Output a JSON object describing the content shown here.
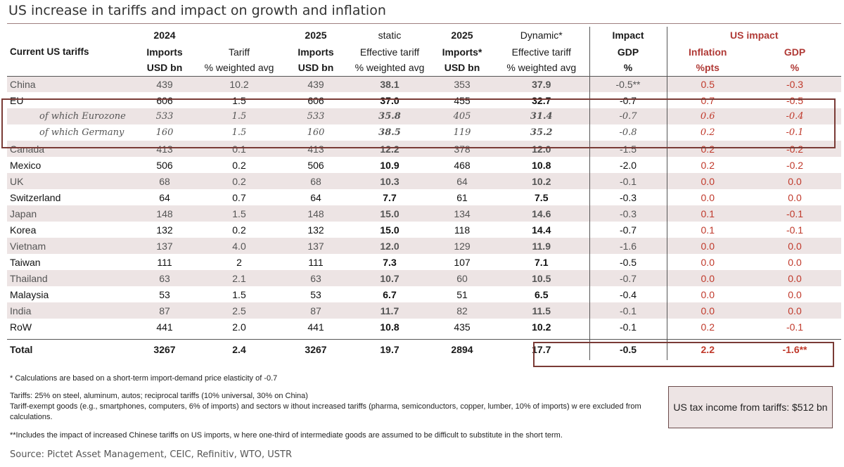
{
  "title": "US increase in tariffs and impact on growth and inflation",
  "header": {
    "col0": [
      "",
      "Current US tariffs",
      ""
    ],
    "col1": [
      "2024",
      "Imports",
      "USD bn"
    ],
    "col2": [
      "",
      "Tariff",
      "% weighted avg"
    ],
    "col3": [
      "2025",
      "Imports",
      "USD bn"
    ],
    "col4": [
      "static",
      "Effective tariff",
      "% weighted avg"
    ],
    "col5": [
      "2025",
      "Imports*",
      "USD bn"
    ],
    "col6": [
      "Dynamic*",
      "Effective tariff",
      "% weighted avg"
    ],
    "col7": [
      "Impact",
      "GDP",
      "%"
    ],
    "us_impact": "US impact",
    "col8": [
      "Inflation",
      "%pts"
    ],
    "col9": [
      "GDP",
      "%"
    ]
  },
  "rows": [
    {
      "country": "China",
      "imp24": "439",
      "tariff": "10.2",
      "imp25": "439",
      "static": "38.1",
      "imp25d": "353",
      "dynamic": "37.9",
      "gdp_impact": "-0.5**",
      "inflation": "0.5",
      "us_gdp": "-0.3"
    },
    {
      "country": "EU",
      "imp24": "606",
      "tariff": "1.5",
      "imp25": "606",
      "static": "37.0",
      "imp25d": "455",
      "dynamic": "32.7",
      "gdp_impact": "-0.7",
      "inflation": "0.7",
      "us_gdp": "-0.5"
    },
    {
      "country": "of which Eurozone",
      "imp24": "533",
      "tariff": "1.5",
      "imp25": "533",
      "static": "35.8",
      "imp25d": "405",
      "dynamic": "31.4",
      "gdp_impact": "-0.7",
      "inflation": "0.6",
      "us_gdp": "-0.4"
    },
    {
      "country": "of which Germany",
      "imp24": "160",
      "tariff": "1.5",
      "imp25": "160",
      "static": "38.5",
      "imp25d": "119",
      "dynamic": "35.2",
      "gdp_impact": "-0.8",
      "inflation": "0.2",
      "us_gdp": "-0.1"
    },
    {
      "country": "Canada",
      "imp24": "413",
      "tariff": "0.1",
      "imp25": "413",
      "static": "12.2",
      "imp25d": "378",
      "dynamic": "12.0",
      "gdp_impact": "-1.5",
      "inflation": "0.2",
      "us_gdp": "-0.2"
    },
    {
      "country": "Mexico",
      "imp24": "506",
      "tariff": "0.2",
      "imp25": "506",
      "static": "10.9",
      "imp25d": "468",
      "dynamic": "10.8",
      "gdp_impact": "-2.0",
      "inflation": "0.2",
      "us_gdp": "-0.2"
    },
    {
      "country": "UK",
      "imp24": "68",
      "tariff": "0.2",
      "imp25": "68",
      "static": "10.3",
      "imp25d": "64",
      "dynamic": "10.2",
      "gdp_impact": "-0.1",
      "inflation": "0.0",
      "us_gdp": "0.0"
    },
    {
      "country": "Switzerland",
      "imp24": "64",
      "tariff": "0.7",
      "imp25": "64",
      "static": "7.7",
      "imp25d": "61",
      "dynamic": "7.5",
      "gdp_impact": "-0.3",
      "inflation": "0.0",
      "us_gdp": "0.0"
    },
    {
      "country": "Japan",
      "imp24": "148",
      "tariff": "1.5",
      "imp25": "148",
      "static": "15.0",
      "imp25d": "134",
      "dynamic": "14.6",
      "gdp_impact": "-0.3",
      "inflation": "0.1",
      "us_gdp": "-0.1"
    },
    {
      "country": "Korea",
      "imp24": "132",
      "tariff": "0.2",
      "imp25": "132",
      "static": "15.0",
      "imp25d": "118",
      "dynamic": "14.4",
      "gdp_impact": "-0.7",
      "inflation": "0.1",
      "us_gdp": "-0.1"
    },
    {
      "country": "Vietnam",
      "imp24": "137",
      "tariff": "4.0",
      "imp25": "137",
      "static": "12.0",
      "imp25d": "129",
      "dynamic": "11.9",
      "gdp_impact": "-1.6",
      "inflation": "0.0",
      "us_gdp": "0.0"
    },
    {
      "country": "Taiwan",
      "imp24": "111",
      "tariff": "2",
      "imp25": "111",
      "static": "7.3",
      "imp25d": "107",
      "dynamic": "7.1",
      "gdp_impact": "-0.5",
      "inflation": "0.0",
      "us_gdp": "0.0"
    },
    {
      "country": "Thailand",
      "imp24": "63",
      "tariff": "2.1",
      "imp25": "63",
      "static": "10.7",
      "imp25d": "60",
      "dynamic": "10.5",
      "gdp_impact": "-0.7",
      "inflation": "0.0",
      "us_gdp": "0.0"
    },
    {
      "country": "Malaysia",
      "imp24": "53",
      "tariff": "1.5",
      "imp25": "53",
      "static": "6.7",
      "imp25d": "51",
      "dynamic": "6.5",
      "gdp_impact": "-0.4",
      "inflation": "0.0",
      "us_gdp": "0.0"
    },
    {
      "country": "India",
      "imp24": "87",
      "tariff": "2.5",
      "imp25": "87",
      "static": "11.7",
      "imp25d": "82",
      "dynamic": "11.5",
      "gdp_impact": "-0.1",
      "inflation": "0.0",
      "us_gdp": "0.0"
    },
    {
      "country": "RoW",
      "imp24": "441",
      "tariff": "2.0",
      "imp25": "441",
      "static": "10.8",
      "imp25d": "435",
      "dynamic": "10.2",
      "gdp_impact": "-0.1",
      "inflation": "0.2",
      "us_gdp": "-0.1"
    }
  ],
  "total": {
    "country": "Total",
    "imp24": "3267",
    "tariff": "2.4",
    "imp25": "3267",
    "static": "19.7",
    "imp25d": "2894",
    "dynamic": "17.7",
    "gdp_impact": "-0.5",
    "inflation": "2.2",
    "us_gdp": "-1.6**"
  },
  "notes": {
    "n1": "* Calculations are based on a short-term import-demand price elasticity of -0.7",
    "n2": "Tariffs: 25% on steel, aluminum, autos; reciprocal tariffs (10% universal, 30% on China)",
    "n3": "Tariff-exempt goods (e.g., smartphones, computers, 6% of imports)  and sectors w ithout increased tariffs (pharma, semiconductors, copper, lumber, 10% of imports) w ere excluded from calculations.",
    "n4": "**Includes the impact of increased Chinese tariffs on US imports, w here one-third of intermediate goods are assumed to be difficult to substitute in the short term.",
    "source": "Source: Pictet Asset Management, CEIC, Refinitiv, WTO, USTR"
  },
  "tax_box": "US tax income from tariffs: $512 bn",
  "colors": {
    "accent_red": "#c0392b",
    "box_border": "#7a3b36",
    "row_shade": "#ede4e4"
  }
}
